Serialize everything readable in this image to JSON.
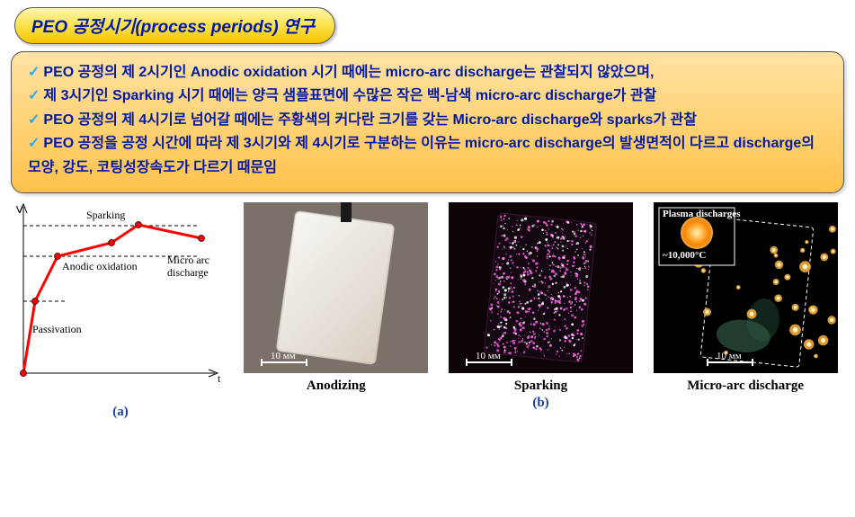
{
  "title": "PEO 공정시기(process periods) 연구",
  "bullets": [
    "PEO 공정의 제 2시기인 Anodic oxidation 시기 때에는 micro-arc discharge는 관찰되지 않았으며,",
    "제 3시기인 Sparking 시기 때에는 양극 샘플표면에 수많은 작은 백-남색 micro-arc discharge가 관찰",
    "PEO 공정의 제 4시기로 넘어갈 때에는 주황색의 커다란 크기를 갖는 Micro-arc discharge와 sparks가 관찰",
    "PEO 공정을 공정 시간에 따라 제 3시기와 제 4시기로 구분하는 이유는 micro-arc discharge의 발생면적이 다르고 discharge의 모양, 강도, 코팅성장속도가 다르기 때문임"
  ],
  "chart": {
    "y_axis_label": "V",
    "x_axis_label": "t",
    "labels": {
      "passivation": "Passivation",
      "anodic": "Anodic oxidation",
      "sparking": "Sparking",
      "micro": "Micro arc discharge"
    },
    "line_color": "#ff0000",
    "axis_color": "#000000",
    "dash_color": "#000000",
    "points_x": [
      12,
      25,
      50,
      110,
      140,
      210
    ],
    "points_y": [
      190,
      110,
      60,
      45,
      25,
      40
    ]
  },
  "panels": {
    "anodizing": {
      "caption": "Anodizing",
      "scale": "10 мм",
      "bg": "#7a7168",
      "plate": "#eae4dc"
    },
    "sparking": {
      "caption": "Sparking",
      "scale": "10 мм",
      "bg": "#0d0408",
      "spark_color": "#ff66e6"
    },
    "micro": {
      "caption": "Micro-arc discharge",
      "scale": "10 мм",
      "bg": "#000000",
      "plasma_label": "Plasma discharges",
      "temp_label": "~10,000°C",
      "spark_color": "#ffb43c",
      "hot_color": "#ff7a00"
    }
  },
  "sublabels": {
    "a": "(a)",
    "b": "(b)"
  },
  "colors": {
    "title_text": "#0018a8",
    "bullet_text": "#0018a8",
    "check": "#2aa8ff",
    "caption": "#000000",
    "sublabel": "#1a3fa0"
  }
}
